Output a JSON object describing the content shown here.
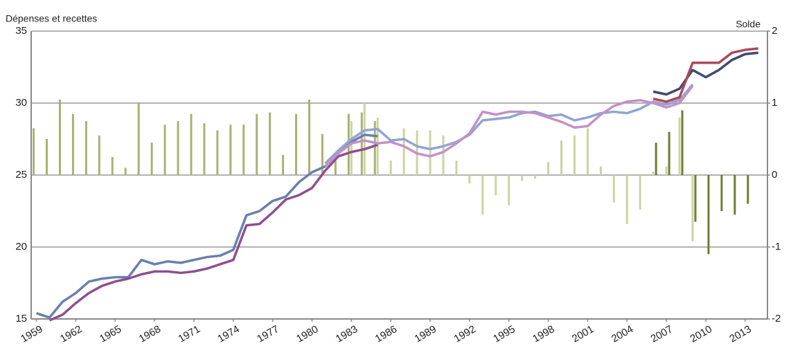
{
  "chart_data": {
    "type": "combo",
    "y_label": "Dépenses et recettes",
    "y2_label": "Solde",
    "xlim": [
      1958.6,
      2014.7
    ],
    "xticks": [
      1959,
      1962,
      1965,
      1968,
      1971,
      1974,
      1977,
      1980,
      1983,
      1986,
      1989,
      1992,
      1995,
      1998,
      2001,
      2004,
      2007,
      2010,
      2013
    ],
    "ylim": [
      15,
      35
    ],
    "yticks": [
      15,
      20,
      25,
      30,
      35
    ],
    "y2lim": [
      -2,
      2
    ],
    "y2ticks": [
      -2,
      -1,
      0,
      1,
      2
    ],
    "grid": true,
    "series": [
      {
        "type": "bar",
        "axis": "y2",
        "color": "#a9b274",
        "x": [
          1959,
          1960,
          1961,
          1962,
          1963,
          1964,
          1965,
          1966,
          1967,
          1968,
          1969,
          1970,
          1971,
          1972,
          1973,
          1974,
          1975,
          1976,
          1977,
          1978,
          1979,
          1980,
          1981,
          1982,
          1983,
          1984,
          1985
        ],
        "values": [
          0.65,
          0.5,
          1.05,
          0.85,
          0.75,
          0.55,
          0.25,
          0.1,
          1.0,
          0.45,
          0.7,
          0.75,
          0.85,
          0.72,
          0.62,
          0.7,
          0.7,
          0.85,
          0.87,
          0.28,
          0.85,
          1.05,
          0.57,
          0.3,
          0.85,
          0.87,
          0.75
        ]
      },
      {
        "type": "bar",
        "axis": "y2",
        "color": "#cad4a2",
        "x": [
          1983,
          1984,
          1985,
          1986,
          1987,
          1988,
          1989,
          1990,
          1991,
          1992,
          1993,
          1994,
          1995,
          1996,
          1997,
          1998,
          1999,
          2000,
          2001,
          2002,
          2003,
          2004,
          2005,
          2006,
          2007,
          2008,
          2009
        ],
        "values": [
          0.75,
          1.0,
          0.8,
          0.2,
          0.65,
          0.62,
          0.62,
          0.55,
          0.2,
          -0.12,
          -0.55,
          -0.28,
          -0.42,
          -0.08,
          -0.05,
          0.18,
          0.48,
          0.55,
          0.65,
          0.12,
          -0.38,
          -0.68,
          -0.48,
          0.05,
          0.12,
          0.8,
          -0.92
        ]
      },
      {
        "type": "bar",
        "axis": "y2",
        "color": "#6e7d32",
        "x": [
          2006,
          2007,
          2008,
          2009,
          2010,
          2011,
          2012,
          2013
        ],
        "values": [
          0.45,
          0.6,
          0.9,
          -0.65,
          -1.1,
          -0.5,
          -0.55,
          -0.4
        ]
      },
      {
        "type": "line",
        "color": "#6a7fb0",
        "x": [
          1959,
          1960,
          1961,
          1962,
          1963,
          1964,
          1965,
          1966,
          1967,
          1968,
          1969,
          1970,
          1971,
          1972,
          1973,
          1974,
          1975,
          1976,
          1977,
          1978,
          1979,
          1980,
          1981,
          1982,
          1983,
          1984,
          1985
        ],
        "values": [
          15.4,
          15.1,
          16.2,
          16.8,
          17.6,
          17.8,
          17.9,
          17.9,
          19.1,
          18.8,
          19.0,
          18.9,
          19.1,
          19.3,
          19.4,
          19.8,
          22.2,
          22.5,
          23.2,
          23.5,
          24.5,
          25.2,
          25.6,
          26.5,
          27.3,
          27.8,
          27.7
        ]
      },
      {
        "type": "line",
        "color": "#8e4f8f",
        "x": [
          1960,
          1961,
          1962,
          1963,
          1964,
          1965,
          1966,
          1967,
          1968,
          1969,
          1970,
          1971,
          1972,
          1973,
          1974,
          1975,
          1976,
          1977,
          1978,
          1979,
          1980,
          1981,
          1982,
          1983,
          1984,
          1985
        ],
        "values": [
          14.9,
          15.3,
          16.1,
          16.8,
          17.3,
          17.6,
          17.8,
          18.1,
          18.3,
          18.3,
          18.2,
          18.3,
          18.5,
          18.8,
          19.1,
          21.5,
          21.6,
          22.4,
          23.3,
          23.6,
          24.1,
          25.3,
          26.3,
          26.6,
          26.8,
          27.1
        ]
      },
      {
        "type": "line",
        "color": "#8fa5d2",
        "x": [
          1981,
          1982,
          1983,
          1984,
          1985,
          1986,
          1987,
          1988,
          1989,
          1990,
          1991,
          1992,
          1993,
          1994,
          1995,
          1996,
          1997,
          1998,
          1999,
          2000,
          2001,
          2002,
          2003,
          2004,
          2005,
          2006,
          2007,
          2008,
          2009
        ],
        "values": [
          25.8,
          26.7,
          27.5,
          28.1,
          28.2,
          27.4,
          27.5,
          27.0,
          26.8,
          27.0,
          27.3,
          27.8,
          28.8,
          28.9,
          29.0,
          29.3,
          29.4,
          29.1,
          29.2,
          28.8,
          29.0,
          29.3,
          29.4,
          29.3,
          29.6,
          30.1,
          29.9,
          30.2,
          31.3
        ]
      },
      {
        "type": "line",
        "color": "#c391c6",
        "x": [
          1981,
          1982,
          1983,
          1984,
          1985,
          1986,
          1987,
          1988,
          1989,
          1990,
          1991,
          1992,
          1993,
          1994,
          1995,
          1996,
          1997,
          1998,
          1999,
          2000,
          2001,
          2002,
          2003,
          2004,
          2005,
          2006,
          2007,
          2008,
          2009
        ],
        "values": [
          25.6,
          26.5,
          27.2,
          27.4,
          27.2,
          27.3,
          27.0,
          26.5,
          26.3,
          26.6,
          27.2,
          27.9,
          29.4,
          29.2,
          29.4,
          29.4,
          29.3,
          29.0,
          28.7,
          28.3,
          28.4,
          29.2,
          29.8,
          30.1,
          30.2,
          30.0,
          29.7,
          30.0,
          31.2
        ]
      },
      {
        "type": "line",
        "color": "#3f4a70",
        "x": [
          2006,
          2007,
          2008,
          2009,
          2010,
          2011,
          2012,
          2013,
          2014
        ],
        "values": [
          30.8,
          30.6,
          31.0,
          32.3,
          31.8,
          32.3,
          33.0,
          33.4,
          33.5
        ]
      },
      {
        "type": "line",
        "color": "#a84a5e",
        "x": [
          2006,
          2007,
          2008,
          2009,
          2010,
          2011,
          2012,
          2013,
          2014
        ],
        "values": [
          30.3,
          30.1,
          30.4,
          32.8,
          32.8,
          32.8,
          33.5,
          33.7,
          33.8
        ]
      }
    ]
  }
}
